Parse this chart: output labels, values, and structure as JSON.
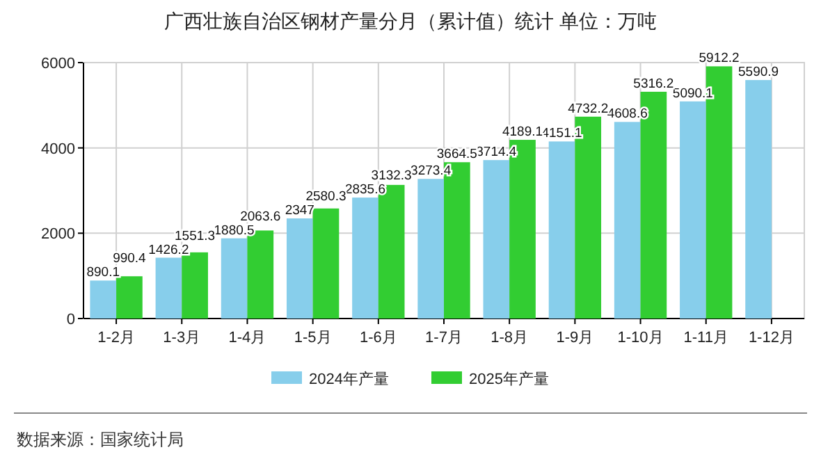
{
  "chart_data": {
    "type": "bar",
    "title": "广西壮族自治区钢材产量分月（累计值）统计  单位：万吨",
    "categories": [
      "1-2月",
      "1-3月",
      "1-4月",
      "1-5月",
      "1-6月",
      "1-7月",
      "1-8月",
      "1-9月",
      "1-10月",
      "1-11月",
      "1-12月"
    ],
    "series": [
      {
        "name": "2024年产量",
        "color": "#87ceeb",
        "values": [
          890.1,
          1426.2,
          1880.5,
          2347,
          2835.6,
          3273.4,
          3714.4,
          4151.1,
          4608.6,
          5090.1,
          5590.9
        ]
      },
      {
        "name": "2025年产量",
        "color": "#32cd32",
        "values": [
          990.4,
          1551.3,
          2063.6,
          2580.3,
          3132.3,
          3664.5,
          4189.1,
          4732.2,
          5316.2,
          5912.2,
          null
        ]
      }
    ],
    "ylim": [
      0,
      6000
    ],
    "yticks": [
      0,
      2000,
      4000,
      6000
    ],
    "grid": true,
    "legend": "bottom",
    "data_labels": true,
    "annotations": [
      "数据来源：国家统计局"
    ]
  }
}
